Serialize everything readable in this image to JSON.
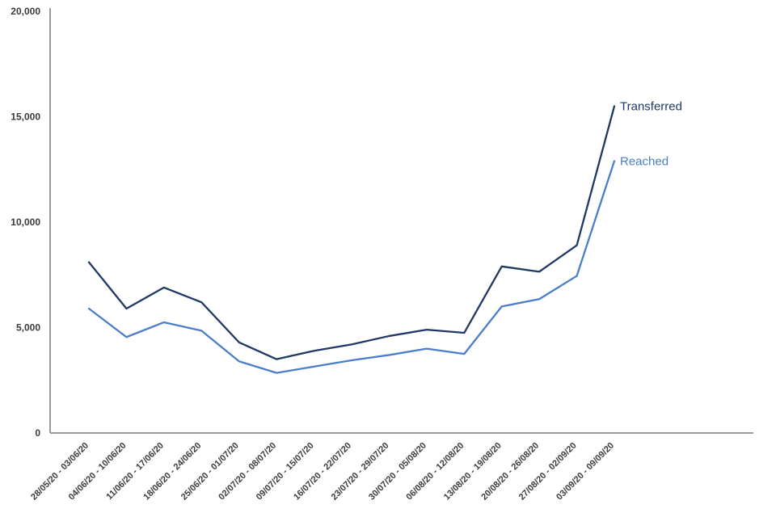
{
  "chart_data": {
    "type": "line",
    "title": "",
    "xlabel": "",
    "ylabel": "",
    "categories": [
      "28/05/20 - 03/06/20",
      "04/06/20 - 10/06/20",
      "11/06/20 - 17/06/20",
      "18/06/20 - 24/06/20",
      "25/06/20 - 01/07/20",
      "02/07/20 - 08/07/20",
      "09/07/20 - 15/07/20",
      "16/07/20 - 22/07/20",
      "23/07/20 - 29/07/20",
      "30/07/20 - 05/08/20",
      "06/08/20 - 12/08/20",
      "13/08/20 - 19/08/20",
      "20/08/20 - 26/08/20",
      "27/08/20 - 02/09/20",
      "03/09/20 - 09/09/20"
    ],
    "series": [
      {
        "name": "Transferred",
        "color": "#1F3864",
        "values": [
          8100,
          5900,
          6900,
          6200,
          4300,
          3500,
          3900,
          4200,
          4600,
          4900,
          4750,
          7900,
          7650,
          8900,
          15500
        ]
      },
      {
        "name": "Reached",
        "color": "#4A7EC8",
        "values": [
          5900,
          4550,
          5250,
          4850,
          3400,
          2850,
          3150,
          3450,
          3700,
          4000,
          3750,
          6000,
          6350,
          7450,
          12900
        ]
      }
    ],
    "ylim": [
      0,
      20000
    ],
    "yticks": [
      0,
      5000,
      10000,
      15000,
      20000
    ],
    "ytick_labels": [
      "0",
      "5,000",
      "10,000",
      "15,000",
      "20,000"
    ],
    "grid": false,
    "legend_position": "line-end-labels"
  },
  "axis": {
    "line_color": "#9B9B9B",
    "tick_label_color": "#3b3b3b"
  }
}
